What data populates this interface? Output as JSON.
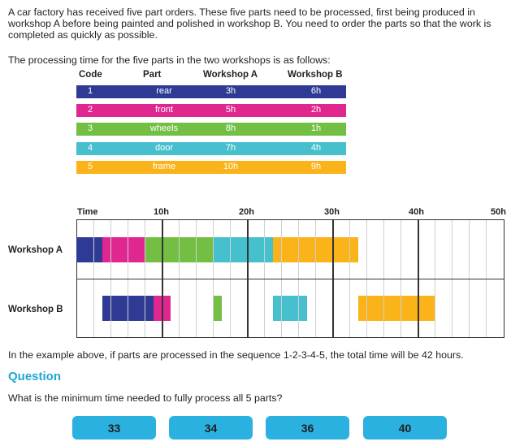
{
  "intro": "A car factory has received five part orders. These five parts need to be processed, first being produced in workshop A before being painted and polished in workshop B. You need to order the parts so that the work is completed as quickly as possible.",
  "intro2": "The processing time for the five parts in the two workshops is as follows:",
  "table": {
    "headers": [
      "Code",
      "Part",
      "Workshop A",
      "Workshop B"
    ],
    "rows": [
      {
        "code": "1",
        "part": "rear",
        "a": "3h",
        "b": "6h",
        "color": "#2e3a93"
      },
      {
        "code": "2",
        "part": "front",
        "a": "5h",
        "b": "2h",
        "color": "#e0278f"
      },
      {
        "code": "3",
        "part": "wheels",
        "a": "8h",
        "b": "1h",
        "color": "#72bf44"
      },
      {
        "code": "4",
        "part": "door",
        "a": "7h",
        "b": "4h",
        "color": "#45c0cc"
      },
      {
        "code": "5",
        "part": "frame",
        "a": "10h",
        "b": "9h",
        "color": "#fbb31a"
      }
    ]
  },
  "gantt": {
    "axis": [
      "Time",
      "10h",
      "20h",
      "30h",
      "40h",
      "50h"
    ],
    "max_hours": 50,
    "row_labels": [
      "Workshop A",
      "Workshop B"
    ],
    "workshop_a": [
      {
        "code": "1",
        "start": 0,
        "end": 3
      },
      {
        "code": "2",
        "start": 3,
        "end": 8
      },
      {
        "code": "3",
        "start": 8,
        "end": 16
      },
      {
        "code": "4",
        "start": 16,
        "end": 23
      },
      {
        "code": "5",
        "start": 23,
        "end": 33
      }
    ],
    "workshop_b": [
      {
        "code": "1",
        "start": 3,
        "end": 9
      },
      {
        "code": "2",
        "start": 9,
        "end": 11
      },
      {
        "code": "3",
        "start": 16,
        "end": 17
      },
      {
        "code": "4",
        "start": 23,
        "end": 27
      },
      {
        "code": "5",
        "start": 33,
        "end": 42
      }
    ]
  },
  "note": "In the example above, if parts are processed in the sequence 1-2-3-4-5, the total time will be 42 hours.",
  "question_heading": "Question",
  "question": "What is the minimum time needed to fully process all 5 parts?",
  "options": [
    "33",
    "34",
    "36",
    "40"
  ],
  "colors": {
    "accent": "#2bb1e0",
    "heading": "#1fa7cf"
  }
}
